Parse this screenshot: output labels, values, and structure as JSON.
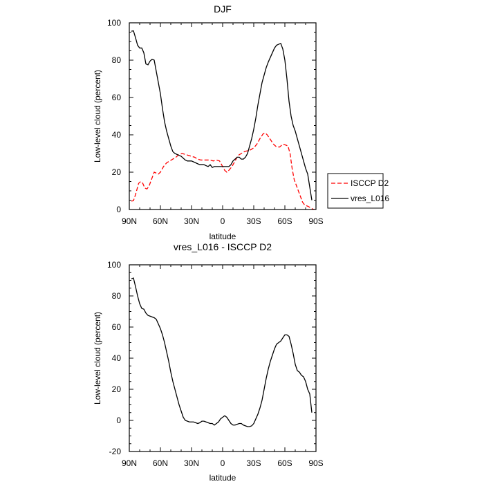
{
  "chart_data": [
    {
      "type": "line",
      "title": "DJF",
      "xlabel": "latitude",
      "ylabel": "Low-level cloud (percent)",
      "xlim": [
        -90,
        90
      ],
      "ylim": [
        0,
        100
      ],
      "x_tick_values": [
        -90,
        -60,
        -30,
        0,
        30,
        60,
        90
      ],
      "x_tick_labels": [
        "90N",
        "60N",
        "30N",
        "0",
        "30S",
        "60S",
        "90S"
      ],
      "y_ticks": [
        0,
        20,
        40,
        60,
        80,
        100
      ],
      "legend": {
        "position": "right",
        "entries": [
          "ISCCP D2",
          "vres_L016"
        ]
      },
      "series": [
        {
          "name": "ISCCP D2",
          "color": "#ff0000",
          "dash": "dashed",
          "points": [
            [
              -88,
              4.5
            ],
            [
              -86,
              4.7
            ],
            [
              -84,
              8
            ],
            [
              -81,
              14
            ],
            [
              -79,
              15
            ],
            [
              -77,
              14
            ],
            [
              -75,
              11.5
            ],
            [
              -73,
              11
            ],
            [
              -71,
              12.5
            ],
            [
              -68,
              17
            ],
            [
              -66,
              20
            ],
            [
              -64,
              19.5
            ],
            [
              -62,
              19
            ],
            [
              -60,
              20
            ],
            [
              -57,
              23
            ],
            [
              -54,
              25
            ],
            [
              -51,
              26
            ],
            [
              -48,
              27
            ],
            [
              -45,
              28
            ],
            [
              -42,
              29.5
            ],
            [
              -39,
              30
            ],
            [
              -36,
              29.5
            ],
            [
              -33,
              29
            ],
            [
              -30,
              28.5
            ],
            [
              -27,
              28
            ],
            [
              -24,
              27
            ],
            [
              -21,
              26.5
            ],
            [
              -18,
              26.5
            ],
            [
              -15,
              26.5
            ],
            [
              -12,
              26.5
            ],
            [
              -9,
              26
            ],
            [
              -6,
              26.5
            ],
            [
              -3,
              26
            ],
            [
              -1,
              24
            ],
            [
              2,
              21
            ],
            [
              4,
              20
            ],
            [
              6,
              21
            ],
            [
              9,
              23
            ],
            [
              12,
              26
            ],
            [
              15,
              29
            ],
            [
              18,
              30
            ],
            [
              21,
              31
            ],
            [
              24,
              31.5
            ],
            [
              27,
              32
            ],
            [
              30,
              33
            ],
            [
              33,
              35
            ],
            [
              36,
              38
            ],
            [
              39,
              40.5
            ],
            [
              41,
              41
            ],
            [
              43,
              40
            ],
            [
              46,
              37.5
            ],
            [
              49,
              35
            ],
            [
              52,
              33.5
            ],
            [
              55,
              33.5
            ],
            [
              58,
              35
            ],
            [
              61,
              34.5
            ],
            [
              63,
              34
            ],
            [
              65,
              30
            ],
            [
              67,
              22
            ],
            [
              69,
              16
            ],
            [
              71,
              13
            ],
            [
              73,
              10
            ],
            [
              75,
              7
            ],
            [
              77,
              4
            ],
            [
              79,
              2.5
            ],
            [
              81,
              2
            ],
            [
              83,
              1.5
            ],
            [
              85,
              0.8
            ],
            [
              87,
              0.2
            ],
            [
              89,
              0
            ]
          ]
        },
        {
          "name": "vres_L016",
          "color": "#000000",
          "dash": "solid",
          "points": [
            [
              -88,
              95.5
            ],
            [
              -86,
              95.7
            ],
            [
              -84,
              92
            ],
            [
              -82,
              88
            ],
            [
              -80,
              86.5
            ],
            [
              -78,
              86.5
            ],
            [
              -76,
              84
            ],
            [
              -74,
              78
            ],
            [
              -72,
              77.5
            ],
            [
              -70,
              79.5
            ],
            [
              -68,
              80.5
            ],
            [
              -66,
              80
            ],
            [
              -64,
              74
            ],
            [
              -62,
              68
            ],
            [
              -60,
              62
            ],
            [
              -58,
              54
            ],
            [
              -56,
              47
            ],
            [
              -54,
              42
            ],
            [
              -52,
              38
            ],
            [
              -50,
              34
            ],
            [
              -48,
              31
            ],
            [
              -46,
              30
            ],
            [
              -44,
              29.5
            ],
            [
              -42,
              29
            ],
            [
              -40,
              28.5
            ],
            [
              -38,
              27.5
            ],
            [
              -36,
              26.5
            ],
            [
              -34,
              26
            ],
            [
              -32,
              26
            ],
            [
              -30,
              26
            ],
            [
              -28,
              25.5
            ],
            [
              -26,
              25
            ],
            [
              -24,
              24.5
            ],
            [
              -22,
              24
            ],
            [
              -20,
              24
            ],
            [
              -18,
              24
            ],
            [
              -16,
              23.5
            ],
            [
              -14,
              23
            ],
            [
              -12,
              24
            ],
            [
              -10,
              22.5
            ],
            [
              -8,
              23
            ],
            [
              -6,
              23
            ],
            [
              -4,
              23
            ],
            [
              -2,
              23
            ],
            [
              0,
              23
            ],
            [
              2,
              23
            ],
            [
              4,
              23
            ],
            [
              6,
              23
            ],
            [
              8,
              24
            ],
            [
              10,
              26
            ],
            [
              12,
              27
            ],
            [
              14,
              28
            ],
            [
              16,
              28
            ],
            [
              18,
              27
            ],
            [
              20,
              27
            ],
            [
              22,
              28
            ],
            [
              24,
              30
            ],
            [
              26,
              34
            ],
            [
              28,
              38
            ],
            [
              30,
              43
            ],
            [
              32,
              49
            ],
            [
              34,
              56
            ],
            [
              36,
              62
            ],
            [
              38,
              68
            ],
            [
              40,
              72
            ],
            [
              42,
              76
            ],
            [
              44,
              79
            ],
            [
              46,
              81.5
            ],
            [
              48,
              84
            ],
            [
              50,
              86.5
            ],
            [
              52,
              88
            ],
            [
              54,
              88.5
            ],
            [
              56,
              89
            ],
            [
              58,
              86
            ],
            [
              60,
              80
            ],
            [
              62,
              70
            ],
            [
              64,
              58
            ],
            [
              66,
              50
            ],
            [
              68,
              45
            ],
            [
              70,
              42
            ],
            [
              72,
              38
            ],
            [
              74,
              34
            ],
            [
              76,
              30
            ],
            [
              78,
              26
            ],
            [
              80,
              22
            ],
            [
              82,
              19
            ],
            [
              84,
              12
            ],
            [
              86,
              5
            ]
          ]
        }
      ]
    },
    {
      "type": "line",
      "title": "vres_L016 - ISCCP D2",
      "xlabel": "latitude",
      "ylabel": "Low-level cloud (percent)",
      "xlim": [
        -90,
        90
      ],
      "ylim": [
        -20,
        100
      ],
      "x_tick_values": [
        -90,
        -60,
        -30,
        0,
        30,
        60,
        90
      ],
      "x_tick_labels": [
        "90N",
        "60N",
        "30N",
        "0",
        "30S",
        "60S",
        "90S"
      ],
      "y_ticks": [
        -20,
        0,
        20,
        40,
        60,
        80,
        100
      ],
      "series": [
        {
          "color": "#000000",
          "dash": "solid",
          "points": [
            [
              -88,
              91
            ],
            [
              -86,
              91.5
            ],
            [
              -84,
              86
            ],
            [
              -82,
              80
            ],
            [
              -80,
              75
            ],
            [
              -78,
              72
            ],
            [
              -76,
              71.5
            ],
            [
              -74,
              69
            ],
            [
              -72,
              67.5
            ],
            [
              -70,
              67
            ],
            [
              -68,
              66.5
            ],
            [
              -66,
              66
            ],
            [
              -64,
              65
            ],
            [
              -62,
              62
            ],
            [
              -60,
              59
            ],
            [
              -58,
              55
            ],
            [
              -56,
              50
            ],
            [
              -54,
              44
            ],
            [
              -52,
              38
            ],
            [
              -50,
              31
            ],
            [
              -48,
              25
            ],
            [
              -46,
              20
            ],
            [
              -44,
              15
            ],
            [
              -42,
              10
            ],
            [
              -40,
              6
            ],
            [
              -38,
              2
            ],
            [
              -36,
              0
            ],
            [
              -34,
              -0.5
            ],
            [
              -32,
              -1
            ],
            [
              -30,
              -1
            ],
            [
              -28,
              -1
            ],
            [
              -26,
              -1.5
            ],
            [
              -24,
              -2
            ],
            [
              -22,
              -1.5
            ],
            [
              -20,
              -0.5
            ],
            [
              -18,
              -0.5
            ],
            [
              -16,
              -1
            ],
            [
              -14,
              -1.5
            ],
            [
              -12,
              -2
            ],
            [
              -10,
              -2
            ],
            [
              -8,
              -3
            ],
            [
              -6,
              -2
            ],
            [
              -4,
              -1
            ],
            [
              -2,
              1
            ],
            [
              0,
              2
            ],
            [
              2,
              3
            ],
            [
              4,
              2
            ],
            [
              6,
              0
            ],
            [
              8,
              -2
            ],
            [
              10,
              -3
            ],
            [
              12,
              -3
            ],
            [
              14,
              -2.5
            ],
            [
              16,
              -2
            ],
            [
              18,
              -2
            ],
            [
              20,
              -3
            ],
            [
              22,
              -3.5
            ],
            [
              24,
              -4
            ],
            [
              26,
              -4
            ],
            [
              28,
              -3.5
            ],
            [
              30,
              -2
            ],
            [
              32,
              1
            ],
            [
              34,
              4
            ],
            [
              36,
              8
            ],
            [
              38,
              13
            ],
            [
              40,
              20
            ],
            [
              42,
              27
            ],
            [
              44,
              33
            ],
            [
              46,
              38
            ],
            [
              48,
              42
            ],
            [
              50,
              46
            ],
            [
              52,
              49
            ],
            [
              54,
              50
            ],
            [
              56,
              51
            ],
            [
              58,
              53
            ],
            [
              60,
              55
            ],
            [
              62,
              55
            ],
            [
              64,
              54
            ],
            [
              66,
              49
            ],
            [
              68,
              43
            ],
            [
              70,
              36
            ],
            [
              72,
              32
            ],
            [
              74,
              31
            ],
            [
              76,
              29
            ],
            [
              78,
              28
            ],
            [
              80,
              25
            ],
            [
              82,
              20
            ],
            [
              84,
              17
            ],
            [
              86,
              5
            ]
          ]
        }
      ]
    }
  ]
}
